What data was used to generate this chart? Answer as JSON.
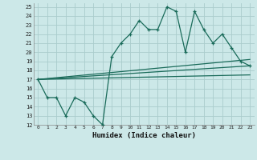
{
  "title": "",
  "xlabel": "Humidex (Indice chaleur)",
  "bg_color": "#cce8e8",
  "line_color": "#1a6b5a",
  "grid_color": "#aacccc",
  "xlim": [
    -0.5,
    23.5
  ],
  "ylim": [
    12,
    25.4
  ],
  "xticks": [
    0,
    1,
    2,
    3,
    4,
    5,
    6,
    7,
    8,
    9,
    10,
    11,
    12,
    13,
    14,
    15,
    16,
    17,
    18,
    19,
    20,
    21,
    22,
    23
  ],
  "yticks": [
    12,
    13,
    14,
    15,
    16,
    17,
    18,
    19,
    20,
    21,
    22,
    23,
    24,
    25
  ],
  "series1_x": [
    0,
    1,
    2,
    3,
    4,
    5,
    6,
    7,
    8,
    9,
    10,
    11,
    12,
    13,
    14,
    15,
    16,
    17,
    18,
    19,
    20,
    21,
    22,
    23
  ],
  "series1_y": [
    17,
    15,
    15,
    13,
    15,
    14.5,
    13,
    12,
    19.5,
    21,
    22,
    23.5,
    22.5,
    22.5,
    25,
    24.5,
    20,
    24.5,
    22.5,
    21,
    22,
    20.5,
    19,
    18.5
  ],
  "trend1_x": [
    0,
    23
  ],
  "trend1_y": [
    17.0,
    18.5
  ],
  "trend2_x": [
    0,
    23
  ],
  "trend2_y": [
    17.0,
    17.5
  ],
  "trend3_x": [
    0,
    23
  ],
  "trend3_y": [
    17.0,
    19.2
  ]
}
